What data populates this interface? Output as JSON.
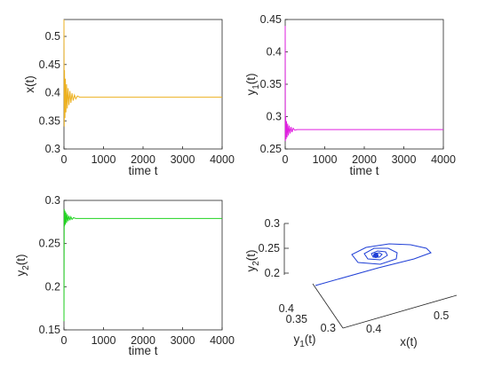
{
  "chart_data": [
    {
      "type": "line",
      "panel": "top-left",
      "xlabel": "time t",
      "ylabel": "x(t)",
      "xlim": [
        0,
        4000
      ],
      "ylim": [
        0.3,
        0.53
      ],
      "xticks": [
        "0",
        "1000",
        "2000",
        "3000",
        "4000"
      ],
      "yticks": [
        "0.3",
        "0.35",
        "0.4",
        "0.45",
        "0.5"
      ],
      "xtick_values": [
        0,
        1000,
        2000,
        3000,
        4000
      ],
      "ytick_values": [
        0.3,
        0.35,
        0.4,
        0.45,
        0.5
      ],
      "color": "#edb120",
      "series": [
        {
          "x": [
            0,
            6,
            14,
            24,
            36,
            50,
            66,
            84,
            104,
            126,
            150,
            176,
            204,
            234,
            266,
            300,
            340,
            400,
            600,
            1000,
            2000,
            3000,
            4000
          ],
          "y": [
            0.53,
            0.34,
            0.44,
            0.355,
            0.425,
            0.365,
            0.415,
            0.372,
            0.408,
            0.378,
            0.403,
            0.382,
            0.399,
            0.386,
            0.396,
            0.389,
            0.394,
            0.392,
            0.392,
            0.392,
            0.392,
            0.392,
            0.392
          ]
        }
      ]
    },
    {
      "type": "line",
      "panel": "top-right",
      "xlabel": "time t",
      "ylabel": "y_1(t)",
      "ylabel_main": "y",
      "ylabel_sub": "1",
      "ylabel_tail": "(t)",
      "xlim": [
        0,
        4000
      ],
      "ylim": [
        0.25,
        0.45
      ],
      "xticks": [
        "0",
        "1000",
        "2000",
        "3000",
        "4000"
      ],
      "yticks": [
        "0.25",
        "0.3",
        "0.35",
        "0.4",
        "0.45"
      ],
      "xtick_values": [
        0,
        1000,
        2000,
        3000,
        4000
      ],
      "ytick_values": [
        0.25,
        0.3,
        0.35,
        0.4,
        0.45
      ],
      "color": "#e020e0",
      "series": [
        {
          "x": [
            0,
            5,
            12,
            22,
            34,
            48,
            64,
            82,
            102,
            124,
            148,
            174,
            202,
            240,
            300,
            500,
            1000,
            2000,
            3000,
            4000
          ],
          "y": [
            0.44,
            0.262,
            0.3,
            0.265,
            0.293,
            0.268,
            0.289,
            0.271,
            0.286,
            0.274,
            0.284,
            0.276,
            0.282,
            0.279,
            0.28,
            0.28,
            0.28,
            0.28,
            0.28,
            0.28
          ]
        }
      ]
    },
    {
      "type": "line",
      "panel": "bottom-left",
      "xlabel": "time t",
      "ylabel": "y_2(t)",
      "ylabel_main": "y",
      "ylabel_sub": "2",
      "ylabel_tail": "(t)",
      "xlim": [
        0,
        4000
      ],
      "ylim": [
        0.15,
        0.3
      ],
      "xticks": [
        "0",
        "1000",
        "2000",
        "3000",
        "4000"
      ],
      "yticks": [
        "0.15",
        "0.2",
        "0.25",
        "0.3"
      ],
      "xtick_values": [
        0,
        1000,
        2000,
        3000,
        4000
      ],
      "ytick_values": [
        0.15,
        0.2,
        0.25,
        0.3
      ],
      "color": "#21d321",
      "series": [
        {
          "x": [
            0,
            6,
            14,
            24,
            36,
            50,
            66,
            84,
            104,
            126,
            150,
            176,
            204,
            240,
            300,
            500,
            1000,
            2000,
            3000,
            4000
          ],
          "y": [
            0.16,
            0.29,
            0.27,
            0.288,
            0.272,
            0.286,
            0.274,
            0.284,
            0.276,
            0.282,
            0.277,
            0.281,
            0.278,
            0.28,
            0.279,
            0.279,
            0.279,
            0.279,
            0.279,
            0.279
          ]
        }
      ]
    },
    {
      "type": "line",
      "panel": "bottom-right",
      "projection": "3d",
      "xlabel": "x(t)",
      "ylabel": "y_1(t)",
      "ylabel_main": "y",
      "ylabel_sub": "1",
      "ylabel_tail": "(t)",
      "zlabel": "y_2(t)",
      "zlabel_main": "y",
      "zlabel_sub": "2",
      "zlabel_tail": "(t)",
      "xticks": [
        "0.4",
        "0.5"
      ],
      "yticks": [
        "0.3",
        "0.35",
        "0.4"
      ],
      "zticks": [
        "0.2",
        "0.25",
        "0.3"
      ],
      "xtick_values": [
        0.4,
        0.5
      ],
      "ytick_values": [
        0.3,
        0.35,
        0.4
      ],
      "ztick_values": [
        0.2,
        0.25,
        0.3
      ],
      "color": "#1f3fd6"
    }
  ]
}
